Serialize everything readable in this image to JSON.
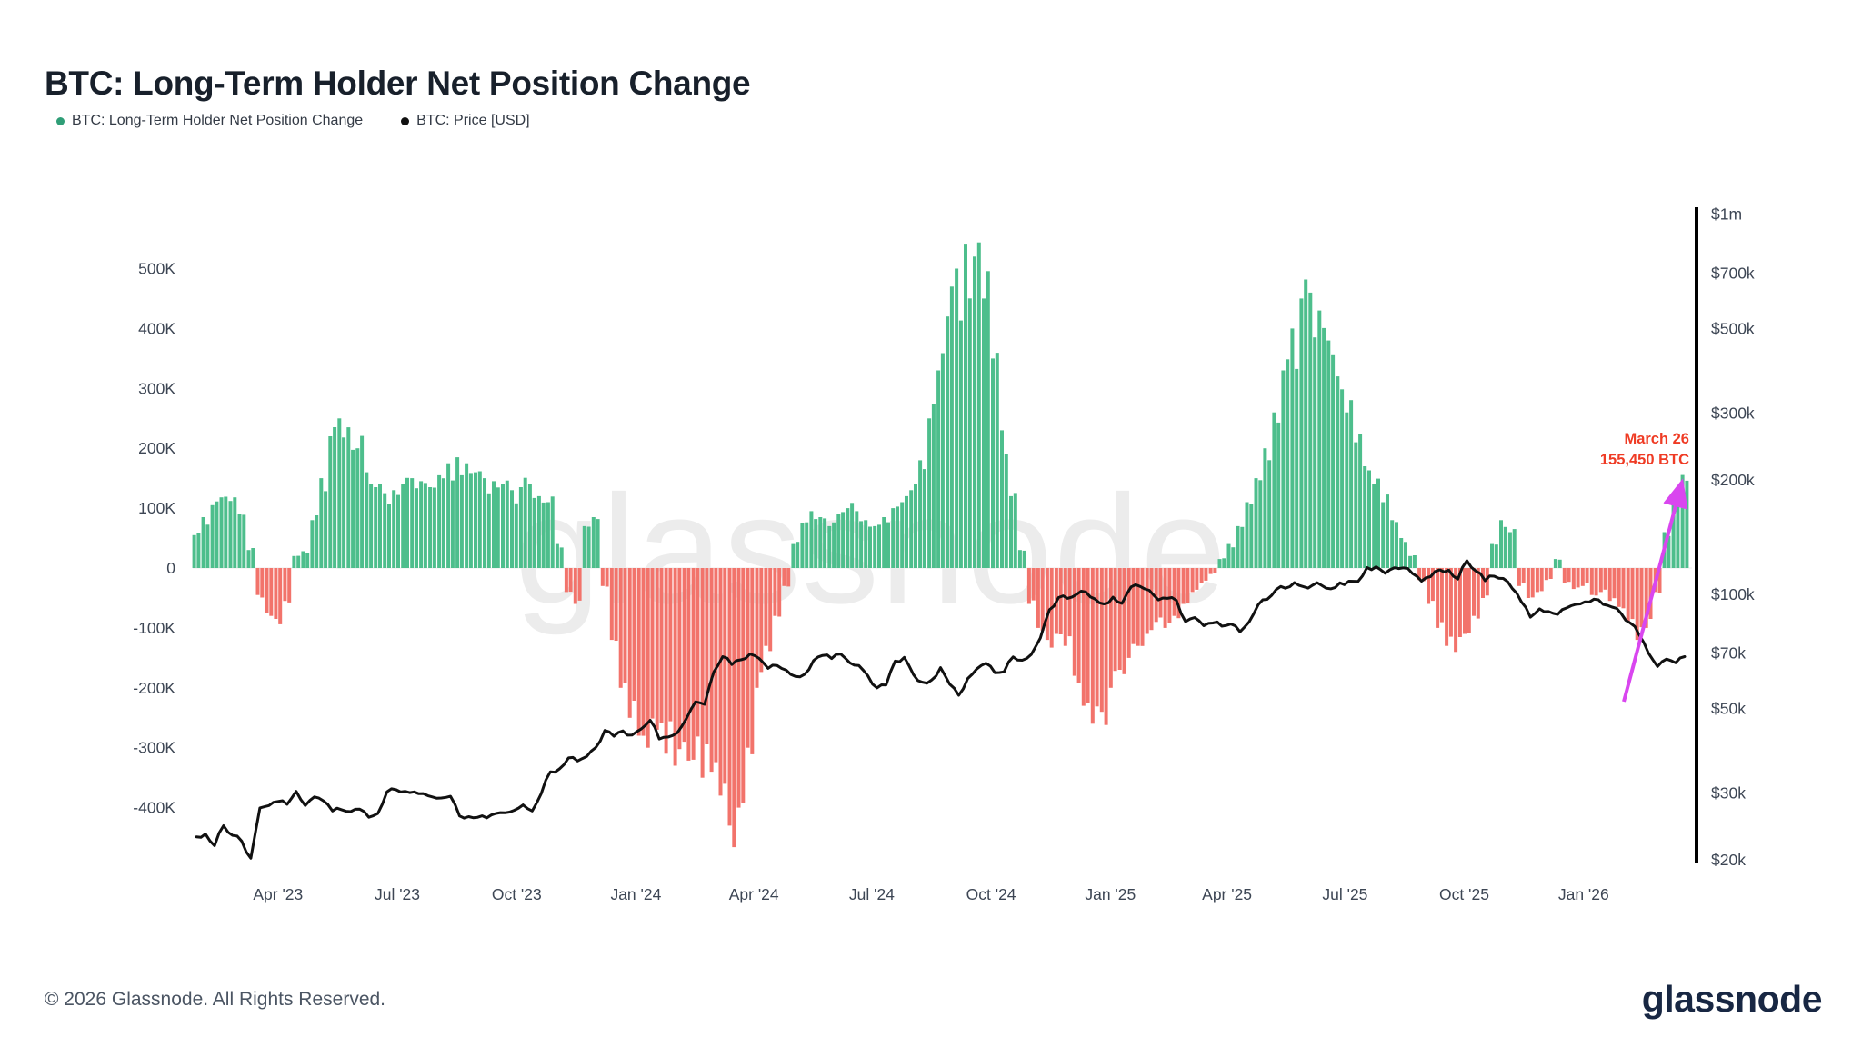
{
  "header": {
    "title": "BTC: Long-Term Holder Net Position Change"
  },
  "legend": {
    "items": [
      {
        "label": "BTC: Long-Term Holder Net Position Change",
        "color": "#2f9e77"
      },
      {
        "label": "BTC: Price [USD]",
        "color": "#111111"
      }
    ]
  },
  "watermark": "glassnode",
  "footer": {
    "copyright": "© 2026 Glassnode. All Rights Reserved.",
    "brand": "glassnode"
  },
  "chart_data": {
    "type": "bar",
    "subtype": "bar-and-line combo, dual axis",
    "title": "BTC: Long-Term Holder Net Position Change",
    "x_start_date": "2023-01-27",
    "x_step_days": 7,
    "x_tick_labels": [
      "Apr '23",
      "Jul '23",
      "Oct '23",
      "Jan '24",
      "Apr '24",
      "Jul '24",
      "Oct '24",
      "Jan '25",
      "Apr '25",
      "Jul '25",
      "Oct '25",
      "Jan '26"
    ],
    "left_axis": {
      "unit": "BTC",
      "tick_labels": [
        "500K",
        "400K",
        "300K",
        "200K",
        "100K",
        "0",
        "-100K",
        "-200K",
        "-300K",
        "-400K"
      ],
      "tick_values_k": [
        500,
        400,
        300,
        200,
        100,
        0,
        -100,
        -200,
        -300,
        -400
      ],
      "range_k": [
        -470,
        560
      ]
    },
    "right_axis": {
      "unit": "USD",
      "scale": "log",
      "tick_labels": [
        "$1m",
        "$700k",
        "$500k",
        "$300k",
        "$200k",
        "$100k",
        "$70k",
        "$50k",
        "$30k",
        "$20k"
      ],
      "tick_values_kusd": [
        1000,
        700,
        500,
        300,
        200,
        100,
        70,
        50,
        30,
        20
      ]
    },
    "grid": "off",
    "legend_position": "top-left",
    "series": [
      {
        "name": "BTC: Long-Term Holder Net Position Change",
        "type": "bar",
        "unit": "K BTC (weekly approximation)",
        "positive_color": "#4dbe8c",
        "negative_color": "#f2736b",
        "values_k_btc": [
          55,
          85,
          105,
          118,
          112,
          90,
          30,
          -45,
          -75,
          -85,
          -55,
          20,
          28,
          80,
          150,
          220,
          250,
          235,
          200,
          160,
          135,
          125,
          130,
          140,
          150,
          145,
          135,
          155,
          175,
          185,
          175,
          160,
          150,
          145,
          140,
          130,
          135,
          140,
          120,
          110,
          40,
          -40,
          -60,
          70,
          85,
          -30,
          -120,
          -200,
          -250,
          -280,
          -300,
          -270,
          -310,
          -330,
          -290,
          -320,
          -350,
          -340,
          -380,
          -430,
          -400,
          -300,
          -200,
          -130,
          -80,
          -30,
          40,
          75,
          95,
          85,
          70,
          90,
          100,
          95,
          80,
          70,
          85,
          100,
          110,
          130,
          180,
          250,
          330,
          420,
          500,
          540,
          520,
          450,
          350,
          230,
          120,
          30,
          -60,
          -100,
          -120,
          -110,
          -130,
          -180,
          -230,
          -260,
          -240,
          -200,
          -170,
          -150,
          -130,
          -110,
          -90,
          -100,
          -80,
          -60,
          -40,
          -25,
          -10,
          15,
          40,
          70,
          110,
          150,
          200,
          260,
          330,
          400,
          450,
          460,
          430,
          380,
          320,
          260,
          210,
          170,
          140,
          110,
          80,
          50,
          20,
          -20,
          -60,
          -100,
          -130,
          -140,
          -110,
          -80,
          -50,
          40,
          80,
          60,
          -30,
          -50,
          -40,
          -20,
          15,
          -25,
          -35,
          -30,
          -45,
          -40,
          -55,
          -65,
          -90,
          -120,
          -100,
          -40,
          60,
          110,
          155.45
        ]
      },
      {
        "name": "BTC: Price [USD]",
        "type": "line",
        "unit": "thousand USD (weekly approximation)",
        "color": "#111111",
        "values_kusd": [
          23.0,
          23.4,
          21.8,
          24.6,
          23.2,
          22.4,
          20.2,
          27.4,
          27.8,
          28.5,
          28.0,
          30.3,
          27.8,
          29.3,
          28.6,
          26.9,
          27.1,
          26.8,
          27.2,
          25.9,
          26.5,
          30.2,
          30.6,
          30.3,
          30.2,
          29.9,
          29.3,
          29.1,
          29.4,
          26.1,
          26.0,
          25.9,
          25.8,
          26.5,
          26.6,
          27.0,
          27.9,
          26.9,
          29.9,
          34.1,
          34.7,
          37.1,
          36.4,
          37.4,
          39.5,
          43.8,
          42.3,
          43.7,
          42.6,
          44.2,
          46.6,
          41.6,
          42.1,
          43.2,
          47.1,
          52.1,
          51.3,
          62.4,
          68.5,
          65.3,
          67.2,
          69.6,
          67.8,
          63.8,
          64.9,
          63.1,
          60.8,
          61.5,
          66.9,
          69.0,
          67.7,
          69.6,
          66.0,
          64.9,
          61.0,
          56.7,
          57.7,
          66.7,
          68.2,
          61.5,
          58.7,
          59.4,
          64.1,
          58.0,
          54.2,
          60.0,
          63.6,
          65.8,
          62.1,
          62.5,
          68.4,
          67.0,
          69.4,
          76.7,
          91.0,
          98.0,
          97.5,
          99.9,
          101.4,
          97.2,
          94.3,
          98.2,
          94.6,
          104.5,
          104.8,
          102.4,
          96.6,
          97.5,
          96.3,
          84.7,
          86.8,
          82.6,
          84.0,
          82.4,
          83.5,
          79.6,
          84.5,
          93.8,
          96.9,
          102.9,
          103.7,
          107.3,
          104.6,
          105.6,
          105.5,
          103.3,
          107.1,
          108.2,
          108.0,
          117.5,
          118.0,
          113.5,
          117.4,
          117.3,
          113.4,
          108.2,
          111.2,
          115.9,
          115.7,
          109.6,
          122.5,
          115.0,
          108.5,
          111.5,
          110.0,
          103.5,
          95.5,
          87.0,
          91.5,
          90.0,
          88.5,
          92.0,
          94.0,
          95.5,
          97.0,
          94.0,
          92.5,
          89.0,
          84.0,
          78.0,
          70.0,
          64.5,
          67.5,
          66.0,
          68.5
        ]
      }
    ],
    "annotation": {
      "date": "March 26",
      "value": "155,450 BTC",
      "text_color": "#ef3b24",
      "arrow_color": "#d946ef"
    }
  }
}
